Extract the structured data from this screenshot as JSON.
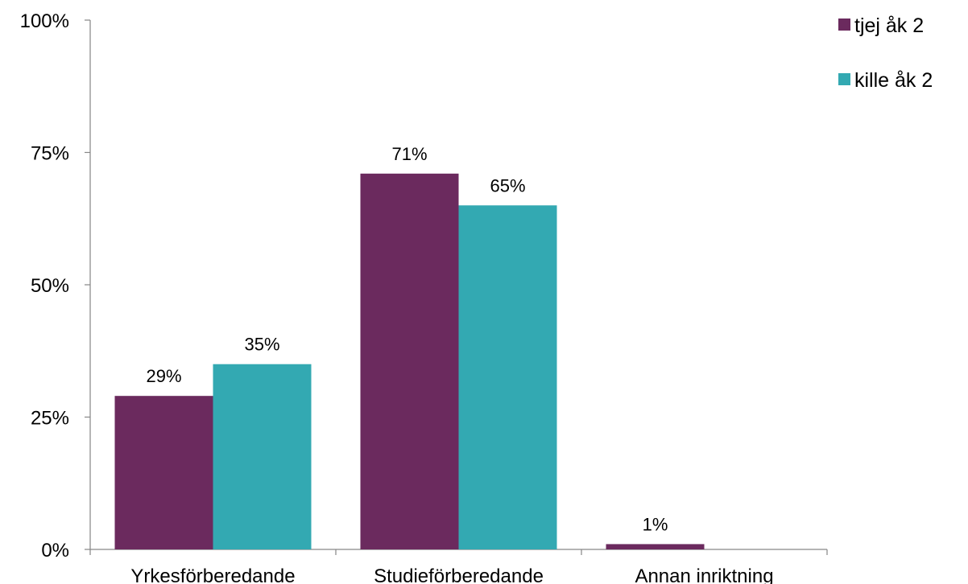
{
  "chart_data": {
    "type": "bar",
    "title": "",
    "xlabel": "",
    "ylabel": "",
    "categories": [
      "Yrkesförberedande",
      "Studieförberedande",
      "Annan inriktning"
    ],
    "series": [
      {
        "name": "tjej åk 2",
        "color": "#6B2A5E",
        "values": [
          29,
          71,
          1
        ],
        "labels": [
          "29%",
          "71%",
          "1%"
        ]
      },
      {
        "name": "kille åk 2",
        "color": "#33A9B2",
        "values": [
          35,
          65,
          0
        ],
        "labels": [
          "35%",
          "65%",
          ""
        ]
      }
    ],
    "ylim": [
      0,
      100
    ],
    "yticks": [
      0,
      25,
      50,
      75,
      100
    ],
    "ytick_labels": [
      "0%",
      "25%",
      "50%",
      "75%",
      "100%"
    ],
    "grid": false,
    "legend_position": "top-right"
  }
}
